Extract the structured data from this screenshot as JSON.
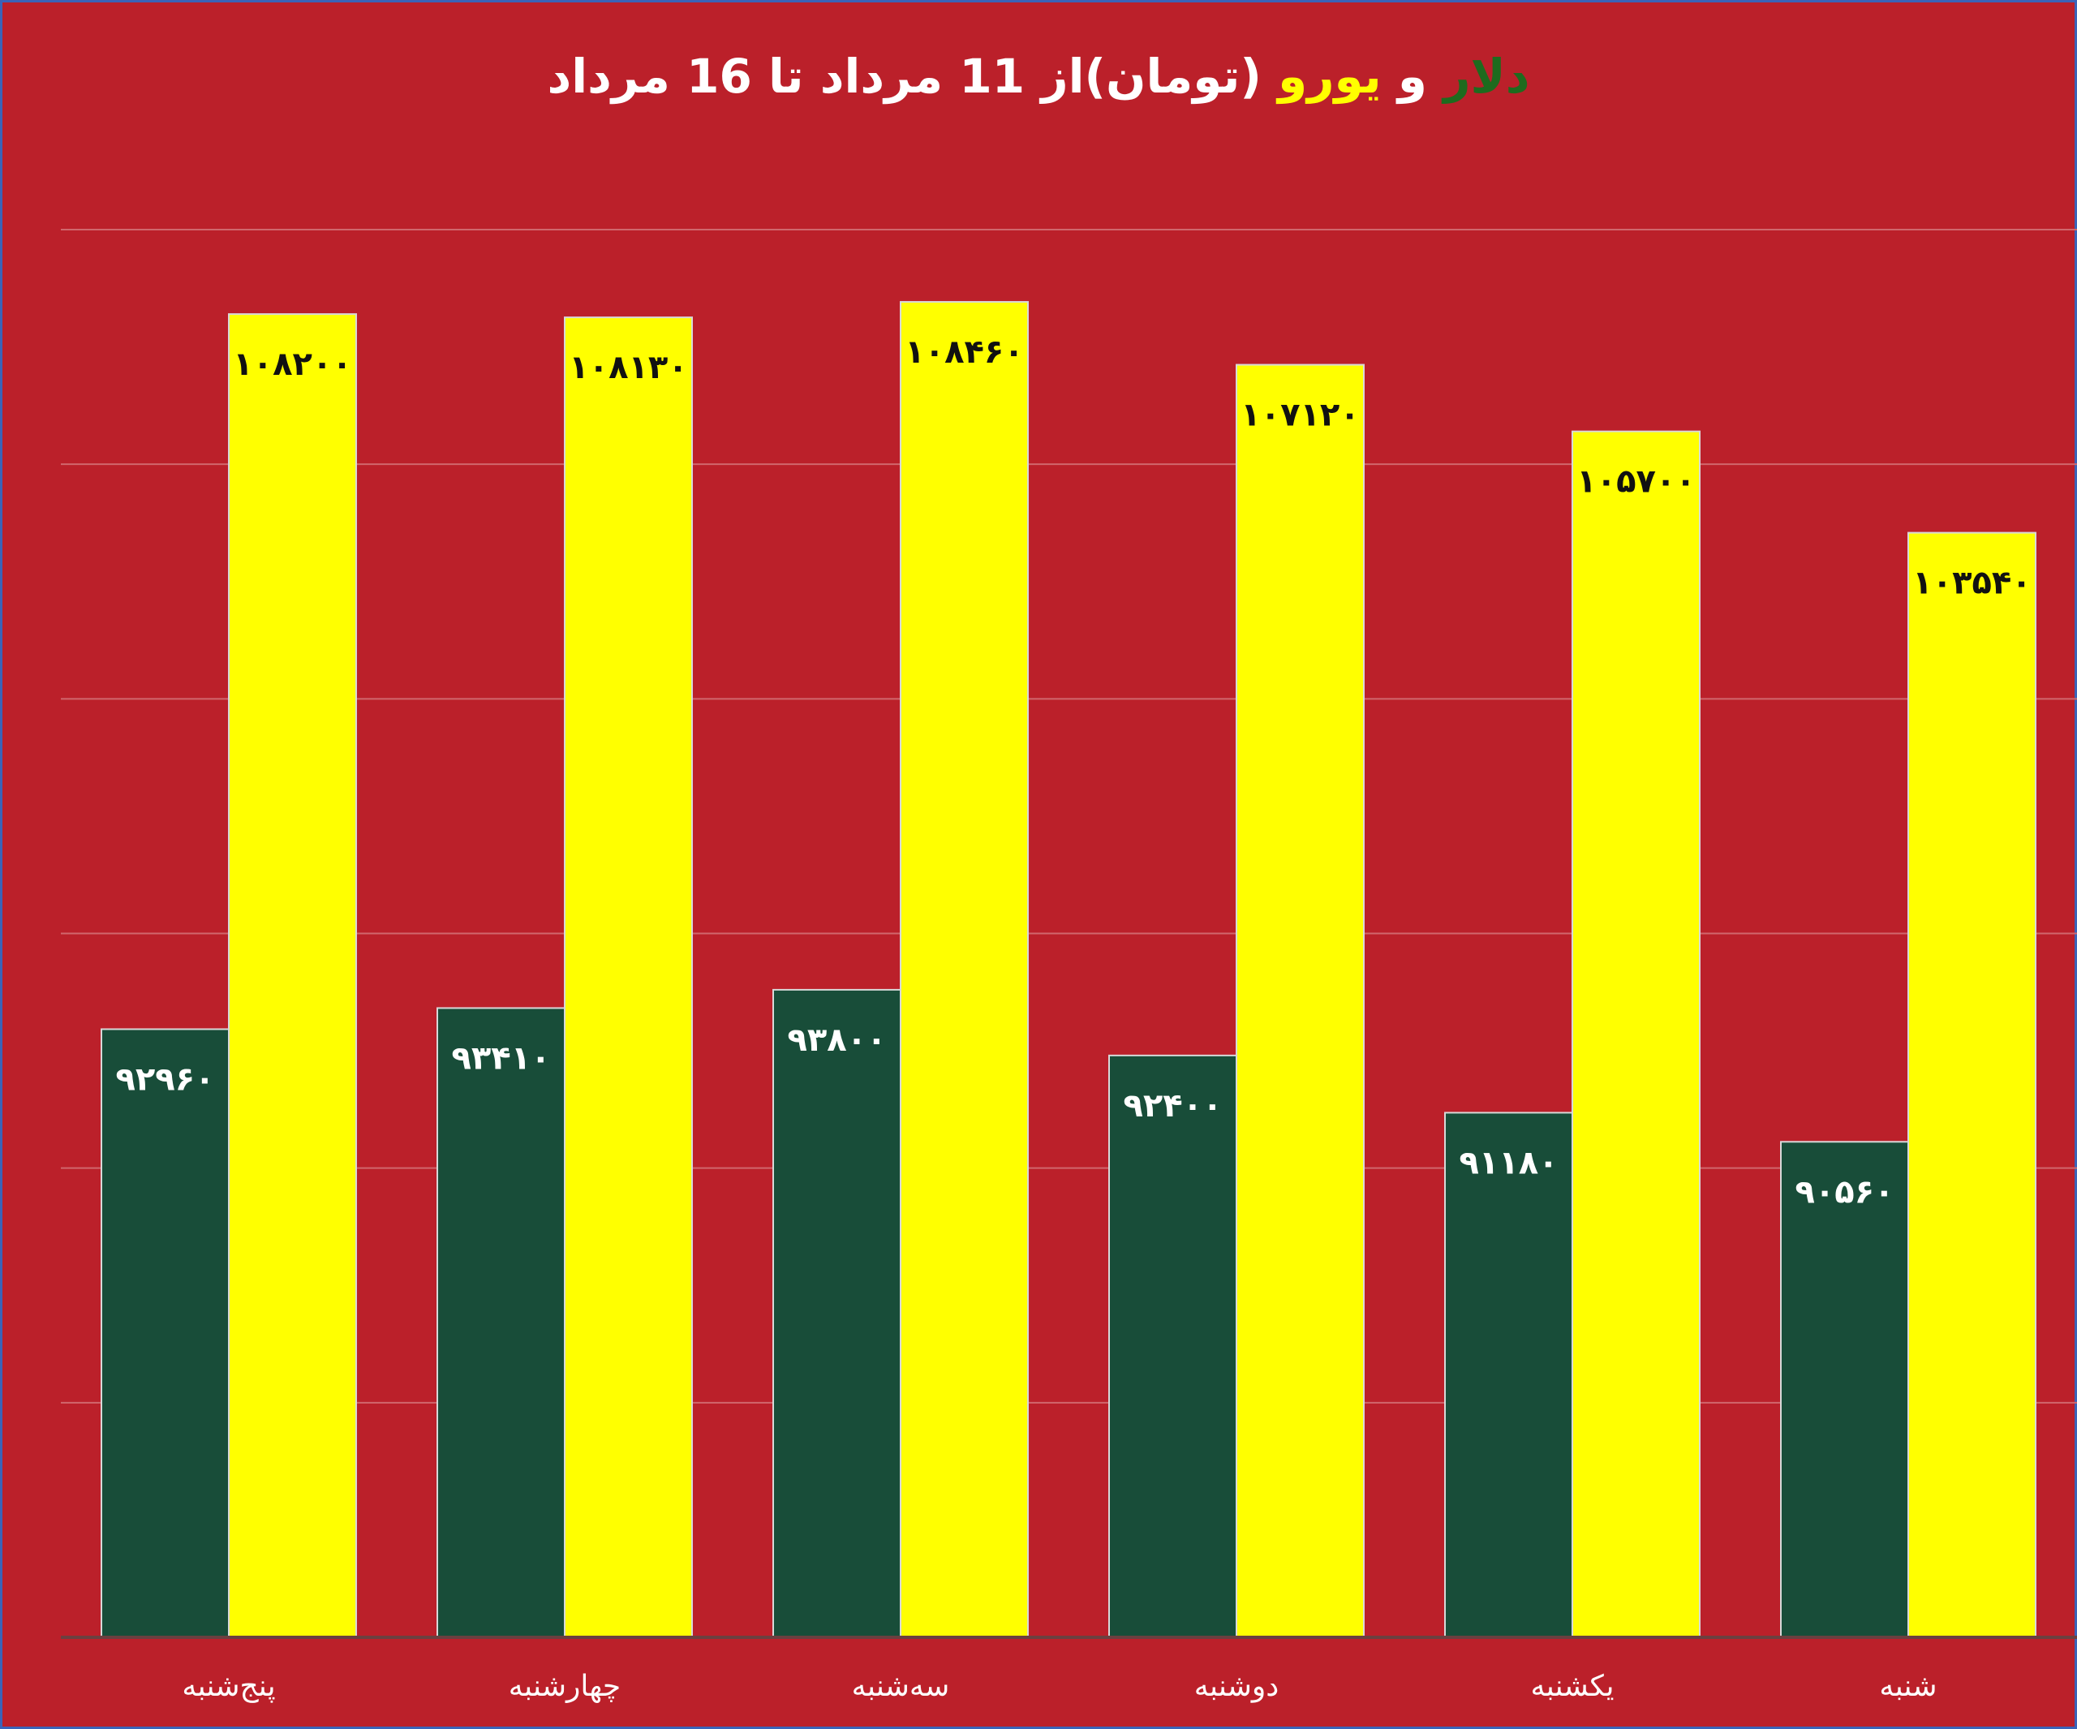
{
  "chart_data": {
    "type": "bar",
    "title": {
      "dollar": "دلار",
      "and": "و",
      "euro": "یورو",
      "rest": "(تومان)از 11 مرداد تا 16 مرداد"
    },
    "categories": [
      "پنج‌شنبه",
      "چهارشنبه",
      "سه‌شنبه",
      "دوشنبه",
      "یکشنبه",
      "شنبه"
    ],
    "series": [
      {
        "key": "dollar",
        "color": "#184d39",
        "label_color": "#ffffff",
        "values": [
          92960,
          93410,
          93800,
          92400,
          91180,
          90560
        ],
        "labels": [
          "۹۲۹۶۰",
          "۹۳۴۱۰",
          "۹۳۸۰۰",
          "۹۲۴۰۰",
          "۹۱۱۸۰",
          "۹۰۵۶۰"
        ]
      },
      {
        "key": "euro",
        "color": "#ffff00",
        "label_color": "#111111",
        "values": [
          108200,
          108130,
          108460,
          107120,
          105700,
          103540
        ],
        "labels": [
          "۱۰۸۲۰۰",
          "۱۰۸۱۳۰",
          "۱۰۸۴۶۰",
          "۱۰۷۱۲۰",
          "۱۰۵۷۰۰",
          "۱۰۳۵۴۰"
        ]
      }
    ],
    "ylim": [
      80000,
      110000
    ],
    "grid": true,
    "gridline_color": "#d0676d",
    "axis_color": "#6b4040",
    "background": "#bb202a"
  }
}
